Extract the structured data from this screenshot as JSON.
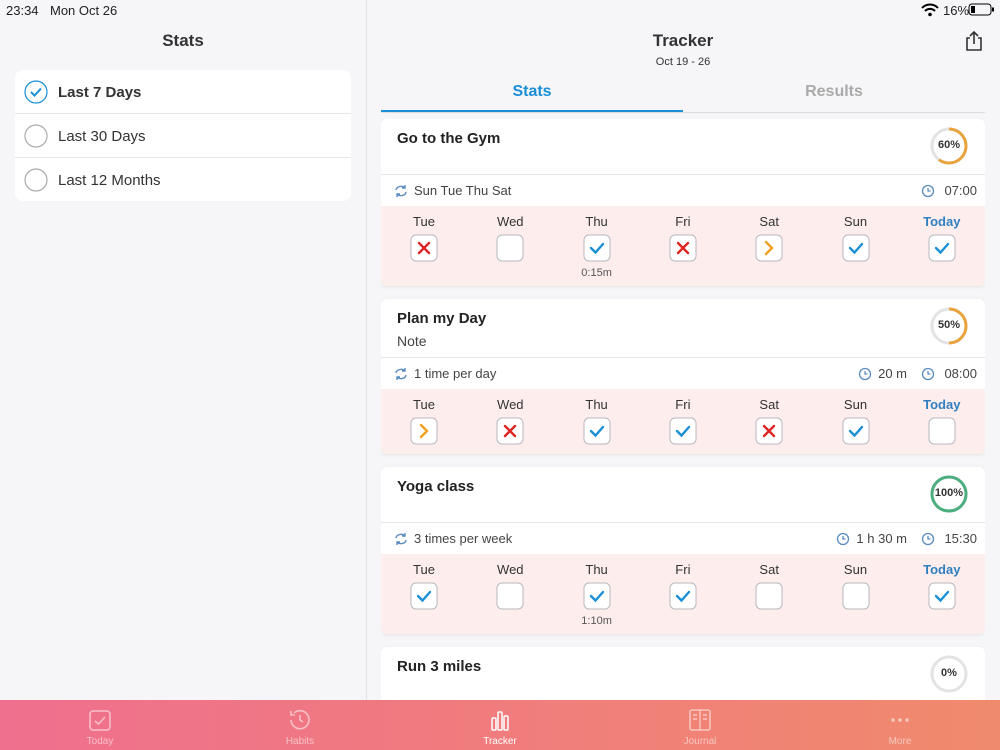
{
  "status_bar": {
    "time": "23:34",
    "date": "Mon Oct 26",
    "battery": "16%"
  },
  "sidebar": {
    "title": "Stats",
    "options": [
      "Last 7 Days",
      "Last 30 Days",
      "Last 12 Months"
    ],
    "selected": 0
  },
  "header": {
    "title": "Tracker",
    "subtitle": "Oct 19 - 26",
    "tabs": [
      "Stats",
      "Results"
    ],
    "active_tab": 0
  },
  "days": [
    "Tue",
    "Wed",
    "Thu",
    "Fri",
    "Sat",
    "Sun",
    "Today"
  ],
  "habits": [
    {
      "name": "Go to the Gym",
      "progress": 60,
      "progress_label": "60%",
      "ring_color": "#e8a33d",
      "schedule": "Sun Tue Thu Sat",
      "time": "07:00",
      "statuses": [
        "x",
        "empty",
        "check",
        "x",
        "skip",
        "check",
        "check"
      ],
      "extras": [
        null,
        null,
        "0:15m",
        null,
        null,
        null,
        null
      ]
    },
    {
      "name": "Plan my Day",
      "note": "Note",
      "progress": 50,
      "progress_label": "50%",
      "ring_color": "#e8a33d",
      "schedule": "1 time per day",
      "duration": "20 m",
      "time": "08:00",
      "statuses": [
        "skip",
        "x",
        "check",
        "check",
        "x",
        "check",
        "empty"
      ],
      "extras": [
        null,
        null,
        null,
        null,
        null,
        null,
        null
      ]
    },
    {
      "name": "Yoga class",
      "progress": 100,
      "progress_label": "100%",
      "ring_color": "#4cae7e",
      "schedule": "3 times per week",
      "duration": "1 h 30 m",
      "time": "15:30",
      "statuses": [
        "check",
        "empty",
        "check",
        "check",
        "empty",
        "empty",
        "check"
      ],
      "extras": [
        null,
        null,
        "1:10m",
        null,
        null,
        null,
        null
      ]
    },
    {
      "name": "Run 3 miles",
      "progress": 0,
      "progress_label": "0%",
      "ring_color": "#e8a33d"
    }
  ],
  "tab_bar": {
    "items": [
      "Today",
      "Habits",
      "Tracker",
      "Journal",
      "More"
    ],
    "active": 2
  }
}
